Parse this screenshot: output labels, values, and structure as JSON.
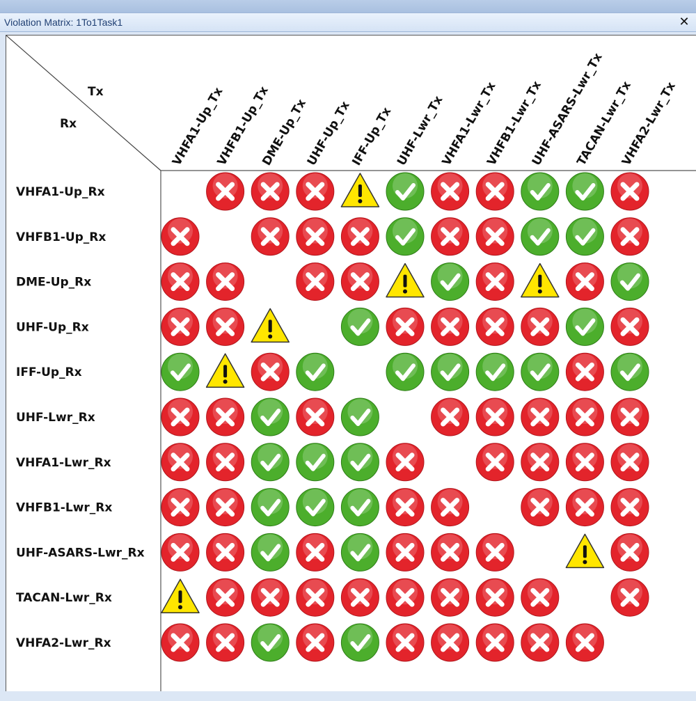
{
  "window": {
    "title": "Violation Matrix:  1To1Task1",
    "close_icon": "close-icon"
  },
  "matrix": {
    "corner_tx": "Tx",
    "corner_rx": "Rx",
    "columns": [
      "VHFA1-Up_Tx",
      "VHFB1-Up_Tx",
      "DME-Up_Tx",
      "UHF-Up_Tx",
      "IFF-Up_Tx",
      "UHF-Lwr_Tx",
      "VHFA1-Lwr_Tx",
      "VHFB1-Lwr_Tx",
      "UHF-ASARS-Lwr_Tx",
      "TACAN-Lwr_Tx",
      "VHFA2-Lwr_Tx"
    ],
    "rows": [
      "VHFA1-Up_Rx",
      "VHFB1-Up_Rx",
      "DME-Up_Rx",
      "UHF-Up_Rx",
      "IFF-Up_Rx",
      "UHF-Lwr_Rx",
      "VHFA1-Lwr_Rx",
      "VHFB1-Lwr_Rx",
      "UHF-ASARS-Lwr_Rx",
      "TACAN-Lwr_Rx",
      "VHFA2-Lwr_Rx"
    ],
    "status_legend": {
      "x": "violation-x-icon",
      "w": "warning-triangle-icon",
      "c": "ok-check-icon",
      "": "empty"
    },
    "cells": [
      [
        "",
        "x",
        "x",
        "x",
        "w",
        "c",
        "x",
        "x",
        "c",
        "c",
        "x"
      ],
      [
        "x",
        "",
        "x",
        "x",
        "x",
        "c",
        "x",
        "x",
        "c",
        "c",
        "x"
      ],
      [
        "x",
        "x",
        "",
        "x",
        "x",
        "w",
        "c",
        "x",
        "w",
        "x",
        "c"
      ],
      [
        "x",
        "x",
        "w",
        "",
        "c",
        "x",
        "x",
        "x",
        "x",
        "c",
        "x"
      ],
      [
        "c",
        "w",
        "x",
        "c",
        "",
        "c",
        "c",
        "c",
        "c",
        "x",
        "c"
      ],
      [
        "x",
        "x",
        "c",
        "x",
        "c",
        "",
        "x",
        "x",
        "x",
        "x",
        "x"
      ],
      [
        "x",
        "x",
        "c",
        "c",
        "c",
        "x",
        "",
        "x",
        "x",
        "x",
        "x"
      ],
      [
        "x",
        "x",
        "c",
        "c",
        "c",
        "x",
        "x",
        "",
        "x",
        "x",
        "x"
      ],
      [
        "x",
        "x",
        "c",
        "x",
        "c",
        "x",
        "x",
        "x",
        "",
        "w",
        "x"
      ],
      [
        "w",
        "x",
        "x",
        "x",
        "x",
        "x",
        "x",
        "x",
        "x",
        "",
        "x"
      ],
      [
        "x",
        "x",
        "c",
        "x",
        "c",
        "x",
        "x",
        "x",
        "x",
        "x",
        ""
      ]
    ],
    "colors": {
      "red": "#e3242b",
      "green": "#4cae2c",
      "yellow": "#ffe600"
    }
  }
}
